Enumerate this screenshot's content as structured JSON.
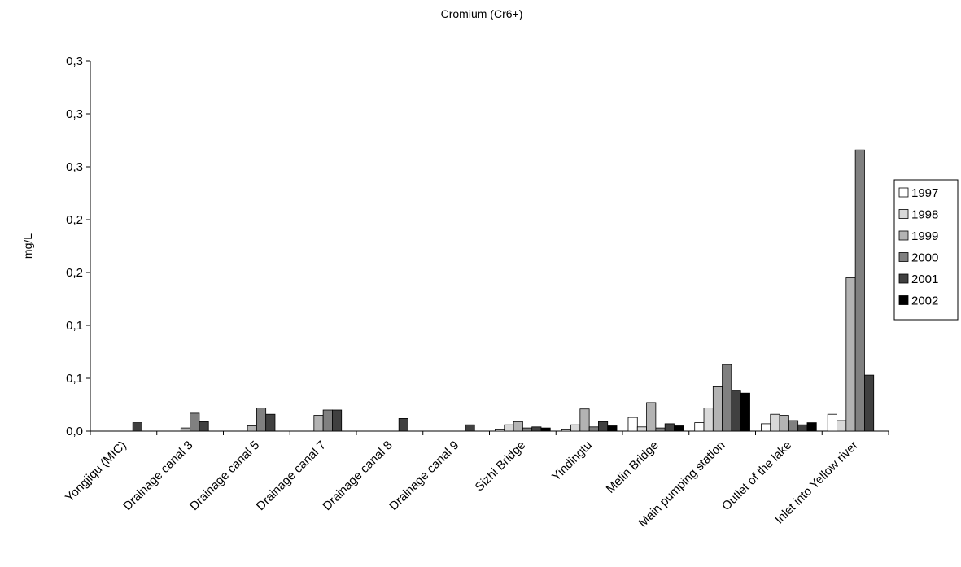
{
  "chart_data": {
    "type": "bar",
    "title": "Cromium (Cr6+)",
    "ylabel": "mg/L",
    "xlabel": "",
    "ylim": [
      0,
      0.35
    ],
    "yticks": [
      0.0,
      0.05,
      0.1,
      0.15,
      0.2,
      0.25,
      0.3,
      0.35
    ],
    "ytick_labels": [
      "0,0",
      "0,1",
      "0,1",
      "0,2",
      "0,2",
      "0,3",
      "0,3",
      "0,3"
    ],
    "grid": false,
    "legend_position": "right",
    "categories": [
      "Yongjiqu (MIC)",
      "Drainage canal 3",
      "Drainage canal 5",
      "Drainage canal 7",
      "Drainage canal 8",
      "Drainage canal 9",
      "Sizhi Bridge",
      "Yindingtu",
      "Melin Bridge",
      "Main pumping station",
      "Outlet of the lake",
      "Inlet into Yellow river"
    ],
    "series": [
      {
        "name": "1997",
        "color": "#ffffff",
        "values": [
          0,
          0,
          0,
          0,
          0,
          0,
          0.002,
          0.002,
          0.013,
          0.008,
          0.007,
          0.016
        ]
      },
      {
        "name": "1998",
        "color": "#d9d9d9",
        "values": [
          0,
          0,
          0,
          0,
          0,
          0,
          0.006,
          0.006,
          0.004,
          0.022,
          0.016,
          0.01
        ]
      },
      {
        "name": "1999",
        "color": "#b3b3b3",
        "values": [
          0,
          0.003,
          0.005,
          0.015,
          0,
          0,
          0.009,
          0.021,
          0.027,
          0.042,
          0.015,
          0.145
        ]
      },
      {
        "name": "2000",
        "color": "#808080",
        "values": [
          0,
          0.017,
          0.022,
          0.02,
          0,
          0,
          0.003,
          0.004,
          0.003,
          0.063,
          0.01,
          0.266
        ]
      },
      {
        "name": "2001",
        "color": "#404040",
        "values": [
          0.008,
          0.009,
          0.016,
          0.02,
          0.012,
          0.006,
          0.004,
          0.009,
          0.007,
          0.038,
          0.006,
          0.053
        ]
      },
      {
        "name": "2002",
        "color": "#000000",
        "values": [
          0,
          0,
          0,
          0,
          0,
          0,
          0.003,
          0.005,
          0.005,
          0.036,
          0.008,
          0
        ]
      }
    ]
  }
}
